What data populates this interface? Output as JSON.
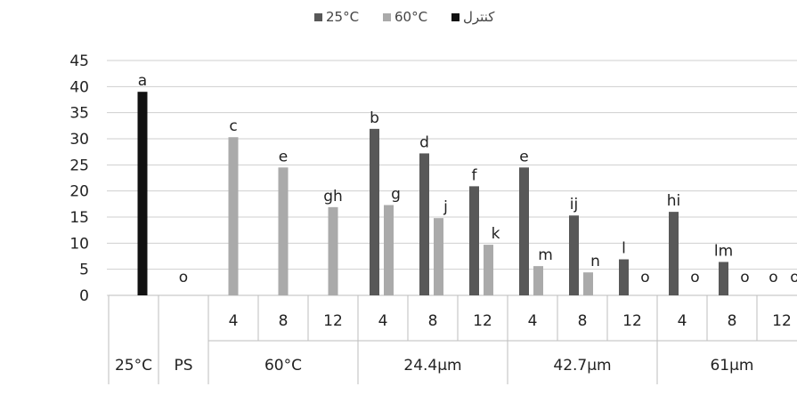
{
  "chart_data": {
    "type": "bar",
    "ylabel": "",
    "ylim": [
      0,
      45
    ],
    "yticks": [
      "0",
      "5",
      "10",
      "15",
      "20",
      "25",
      "30",
      "35",
      "40",
      "45"
    ],
    "grid": true,
    "legend_position": "top-center",
    "legend": [
      {
        "name": "25°C",
        "color": "#585858"
      },
      {
        "name": "60°C",
        "color": "#aaaaaa"
      },
      {
        "name": "كنترل",
        "color": "#111111"
      }
    ],
    "groups": [
      {
        "label": "25°C",
        "subs": [
          {
            "label": "",
            "bars": [
              {
                "series": "control",
                "value": 39,
                "letter": "a"
              }
            ]
          }
        ]
      },
      {
        "label": "PS",
        "subs": [
          {
            "label": "",
            "bars": [
              {
                "series": "none",
                "value": 0,
                "letter": "o"
              }
            ]
          }
        ]
      },
      {
        "label": "60°C",
        "subs": [
          {
            "label": "4",
            "bars": [
              {
                "series": "60",
                "value": 30.3,
                "letter": "c"
              }
            ]
          },
          {
            "label": "8",
            "bars": [
              {
                "series": "60",
                "value": 24.5,
                "letter": "e"
              }
            ]
          },
          {
            "label": "12",
            "bars": [
              {
                "series": "60",
                "value": 16.9,
                "letter": "gh"
              }
            ]
          }
        ]
      },
      {
        "label": "24.4µm",
        "subs": [
          {
            "label": "4",
            "bars": [
              {
                "series": "25",
                "value": 31.9,
                "letter": "b"
              },
              {
                "series": "60",
                "value": 17.3,
                "letter": "g"
              }
            ]
          },
          {
            "label": "8",
            "bars": [
              {
                "series": "25",
                "value": 27.2,
                "letter": "d"
              },
              {
                "series": "60",
                "value": 14.8,
                "letter": "j"
              }
            ]
          },
          {
            "label": "12",
            "bars": [
              {
                "series": "25",
                "value": 20.9,
                "letter": "f"
              },
              {
                "series": "60",
                "value": 9.7,
                "letter": "k"
              }
            ]
          }
        ]
      },
      {
        "label": "42.7µm",
        "subs": [
          {
            "label": "4",
            "bars": [
              {
                "series": "25",
                "value": 24.5,
                "letter": "e"
              },
              {
                "series": "60",
                "value": 5.6,
                "letter": "m"
              }
            ]
          },
          {
            "label": "8",
            "bars": [
              {
                "series": "25",
                "value": 15.3,
                "letter": "ij"
              },
              {
                "series": "60",
                "value": 4.4,
                "letter": "n"
              }
            ]
          },
          {
            "label": "12",
            "bars": [
              {
                "series": "25",
                "value": 6.9,
                "letter": "l"
              },
              {
                "series": "60",
                "value": 0,
                "letter": "o"
              }
            ]
          }
        ]
      },
      {
        "label": "61µm",
        "subs": [
          {
            "label": "4",
            "bars": [
              {
                "series": "25",
                "value": 16.0,
                "letter": "hi"
              },
              {
                "series": "60",
                "value": 0,
                "letter": "o"
              }
            ]
          },
          {
            "label": "8",
            "bars": [
              {
                "series": "25",
                "value": 6.4,
                "letter": "lm"
              },
              {
                "series": "60",
                "value": 0,
                "letter": "o"
              }
            ]
          },
          {
            "label": "12",
            "bars": [
              {
                "series": "25",
                "value": 0,
                "letter": "o"
              },
              {
                "series": "60",
                "value": 0,
                "letter": "o"
              }
            ]
          }
        ]
      }
    ]
  }
}
